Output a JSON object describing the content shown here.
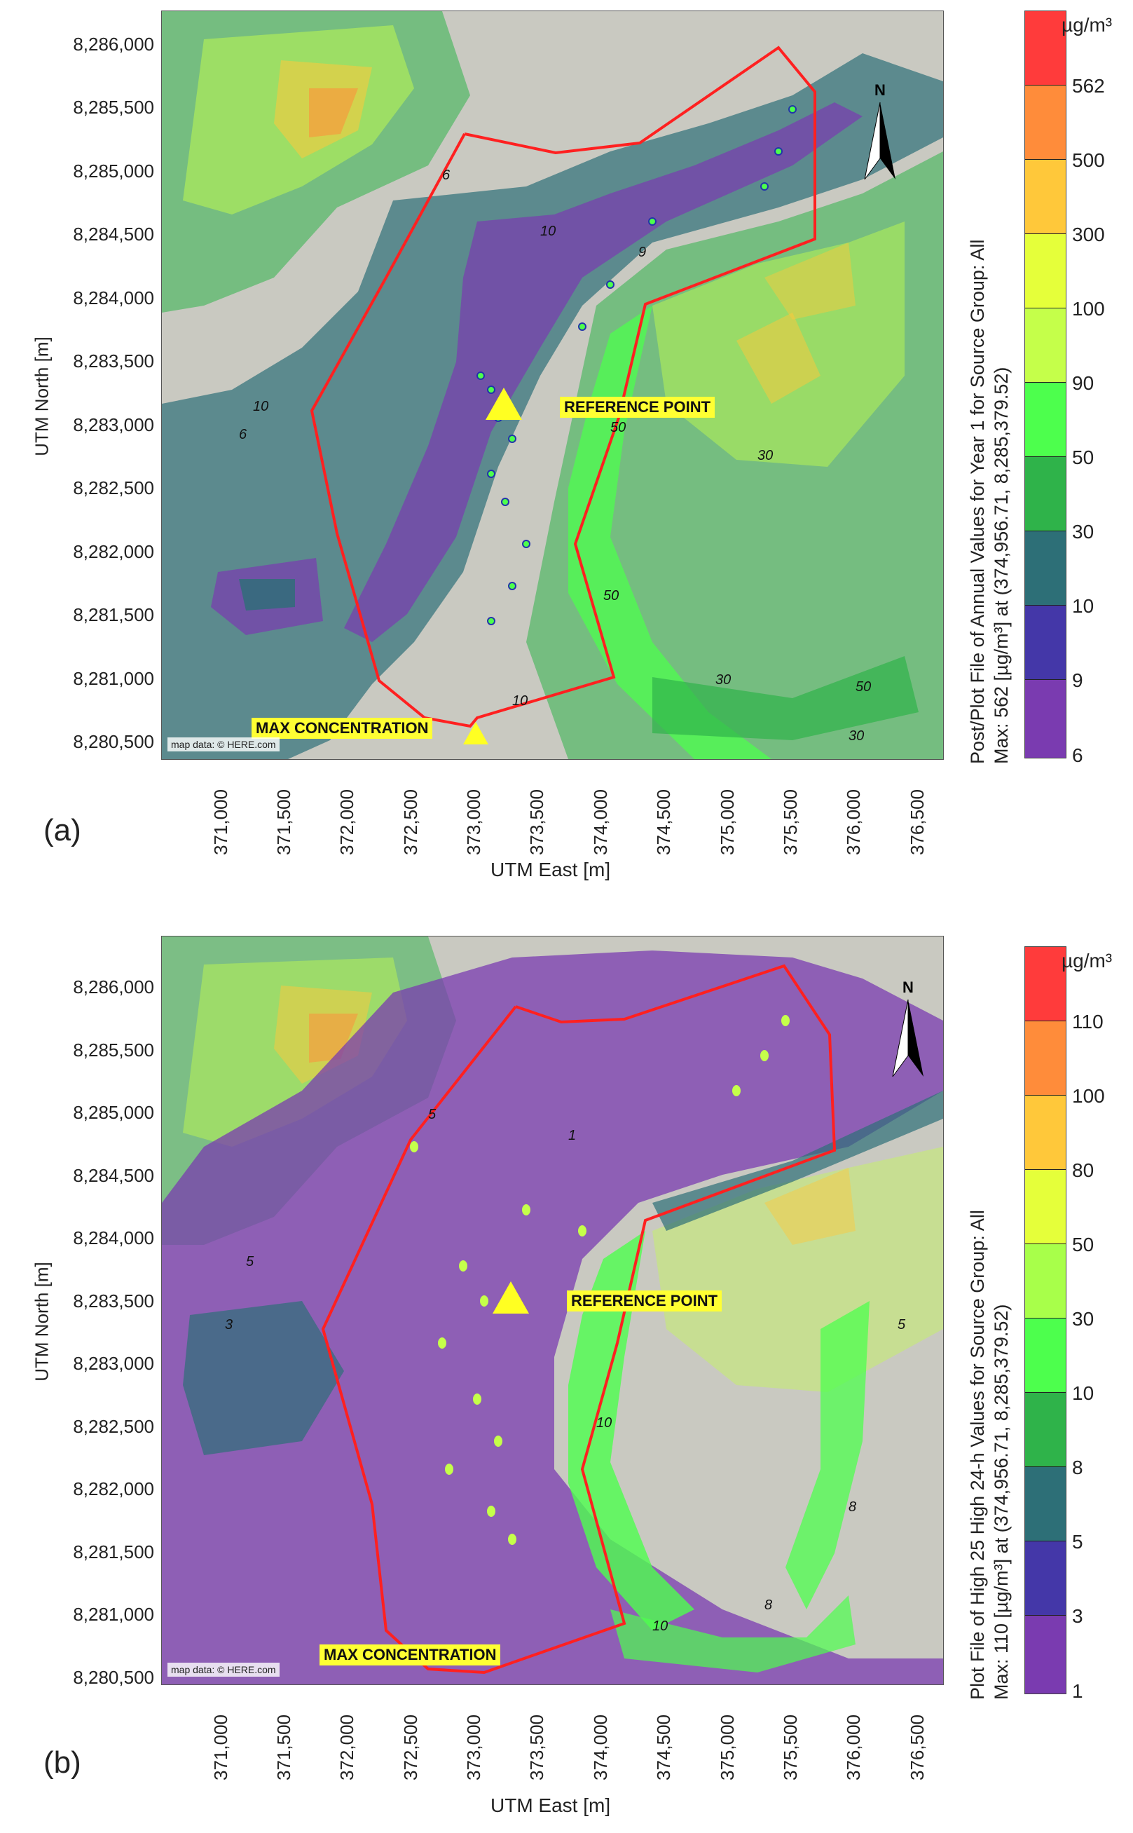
{
  "panels": [
    {
      "id": "a",
      "panel_label": "(a)",
      "ylabel": "UTM North [m]",
      "xlabel": "UTM East [m]",
      "y_ticks": [
        "8,286,000",
        "8,285,500",
        "8,285,000",
        "8,284,500",
        "8,284,000",
        "8,283,500",
        "8,283,000",
        "8,282,500",
        "8,282,000",
        "8,281,500",
        "8,281,000",
        "8,280,500"
      ],
      "x_ticks": [
        "371,000",
        "371,500",
        "372,000",
        "372,500",
        "373,000",
        "373,500",
        "374,000",
        "374,500",
        "375,000",
        "375,500",
        "376,000",
        "376,500"
      ],
      "reference_label": "REFERENCE POINT",
      "max_label": "MAX CONCENTRATION",
      "attribution": "map data: © HERE.com",
      "north_label": "N",
      "colorbar_unit": "µg/m³",
      "colorbar_levels": [
        "562",
        "500",
        "300",
        "100",
        "90",
        "50",
        "30",
        "10",
        "9",
        "6"
      ],
      "colorbar_colors": [
        "#ff3b3b",
        "#ff8c3a",
        "#ffc83a",
        "#e5ff3a",
        "#c5ff4a",
        "#4dff4d",
        "#2fb34a",
        "#2d6f77",
        "#4437a8",
        "#7a3bb0"
      ],
      "colorbar_title_line1": "Post/Plot File of Annual Values for Year 1 for Source Group: All",
      "colorbar_title_line2": "Max: 562 [µg/m³] at (374,956.71, 8,285,379.52)",
      "contour_labels": [
        "6",
        "9",
        "10",
        "30",
        "50"
      ]
    },
    {
      "id": "b",
      "panel_label": "(b)",
      "ylabel": "UTM North [m]",
      "xlabel": "UTM East [m]",
      "y_ticks": [
        "8,286,000",
        "8,285,500",
        "8,285,000",
        "8,284,500",
        "8,284,000",
        "8,283,500",
        "8,283,000",
        "8,282,500",
        "8,282,000",
        "8,281,500",
        "8,281,000",
        "8,280,500"
      ],
      "x_ticks": [
        "371,000",
        "371,500",
        "372,000",
        "372,500",
        "373,000",
        "373,500",
        "374,000",
        "374,500",
        "375,000",
        "375,500",
        "376,000",
        "376,500"
      ],
      "reference_label": "REFERENCE POINT",
      "max_label": "MAX CONCENTRATION",
      "attribution": "map data: © HERE.com",
      "north_label": "N",
      "colorbar_unit": "µg/m³",
      "colorbar_levels": [
        "110",
        "100",
        "80",
        "50",
        "30",
        "10",
        "8",
        "5",
        "3",
        "1"
      ],
      "colorbar_colors": [
        "#ff3b3b",
        "#ff8c3a",
        "#ffc83a",
        "#e5ff3a",
        "#a8ff4a",
        "#4dff4d",
        "#2fb34a",
        "#2d6f77",
        "#4437a8",
        "#7a3bb0"
      ],
      "colorbar_title_line1": "Plot File of High 25 High 24-h Values for Source Group: All",
      "colorbar_title_line2": "Max: 110 [µg/m³] at (374,956.71, 8,285,379.52)",
      "contour_labels": [
        "1",
        "3",
        "5",
        "8",
        "10"
      ]
    }
  ]
}
